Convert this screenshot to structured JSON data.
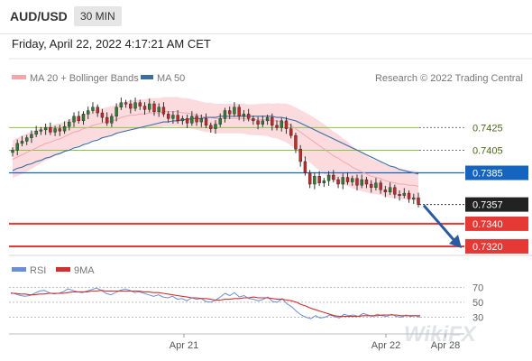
{
  "header": {
    "symbol": "AUD/USD",
    "timeframe": "30 MIN"
  },
  "datetime": "Friday, April 22, 2022 4:17:21 AM CET",
  "legend": {
    "ma20_label": "MA 20 + Bollinger Bands",
    "ma50_label": "MA 50",
    "credit": "Research © 2022 Trading Central"
  },
  "rsi_legend": {
    "rsi_label": "RSI",
    "ma9_label": "9MA"
  },
  "watermark": "WikiFX",
  "colors": {
    "up_candle": "#2e7d32",
    "down_candle": "#c62828",
    "bollinger_fill": "#fbd5d8",
    "ma20": "#f4a6ab",
    "ma50": "#3a6ea5",
    "pivot": "#1565c0",
    "support": "#e53935",
    "resistance": "#8bc34a",
    "arrow": "#2c5aa0",
    "rsi": "#6a8fd6",
    "rsi_ma": "#d32f2f"
  },
  "chart_data": [
    {
      "type": "candlestick",
      "title": "AUD/USD 30 MIN",
      "x_ticks": [
        "Apr 21",
        "Apr 22",
        "Apr 28"
      ],
      "ylim": [
        0.7312,
        0.7462
      ],
      "levels": [
        {
          "value": 0.7425,
          "label": "0.7425",
          "role": "resistance"
        },
        {
          "value": 0.7405,
          "label": "0.7405",
          "role": "resistance"
        },
        {
          "value": 0.7385,
          "label": "0.7385",
          "role": "pivot"
        },
        {
          "value": 0.7357,
          "label": "0.7357",
          "role": "last"
        },
        {
          "value": 0.734,
          "label": "0.7340",
          "role": "support"
        },
        {
          "value": 0.732,
          "label": "0.7320",
          "role": "support"
        }
      ],
      "close": [
        0.7405,
        0.7411,
        0.7413,
        0.7416,
        0.7419,
        0.7422,
        0.7423,
        0.7425,
        0.7421,
        0.7424,
        0.7422,
        0.7426,
        0.743,
        0.7435,
        0.7431,
        0.7437,
        0.744,
        0.7443,
        0.7438,
        0.7434,
        0.7429,
        0.7435,
        0.7443,
        0.7447,
        0.7446,
        0.7442,
        0.7447,
        0.7444,
        0.7441,
        0.7446,
        0.7439,
        0.7443,
        0.7437,
        0.7433,
        0.7436,
        0.7431,
        0.7433,
        0.7429,
        0.7435,
        0.743,
        0.7433,
        0.7427,
        0.7424,
        0.7428,
        0.7433,
        0.744,
        0.7437,
        0.7443,
        0.7435,
        0.7437,
        0.7433,
        0.7431,
        0.7428,
        0.7431,
        0.7434,
        0.7427,
        0.7425,
        0.7431,
        0.7424,
        0.7418,
        0.7406,
        0.7395,
        0.7385,
        0.7375,
        0.7382,
        0.7376,
        0.7378,
        0.7383,
        0.7379,
        0.7375,
        0.7381,
        0.7377,
        0.738,
        0.7374,
        0.7379,
        0.7375,
        0.7372,
        0.7376,
        0.737,
        0.7368,
        0.7372,
        0.7366,
        0.7365,
        0.7367,
        0.7362,
        0.7363,
        0.7357
      ],
      "series": [
        {
          "name": "MA 20",
          "values": [
            0.7397,
            0.7399,
            0.7401,
            0.7403,
            0.7405,
            0.7407,
            0.7409,
            0.7411,
            0.7412,
            0.7414,
            0.7415,
            0.7417,
            0.7419,
            0.7421,
            0.7422,
            0.7424,
            0.7425,
            0.7427,
            0.7428,
            0.7429,
            0.743,
            0.7431,
            0.7432,
            0.7434,
            0.7435,
            0.7436,
            0.7436,
            0.7437,
            0.7437,
            0.7438,
            0.7438,
            0.7438,
            0.7439,
            0.7439,
            0.7439,
            0.7439,
            0.7438,
            0.7438,
            0.7437,
            0.7436,
            0.7435,
            0.7434,
            0.7434,
            0.7433,
            0.7433,
            0.7433,
            0.7433,
            0.7433,
            0.7433,
            0.7433,
            0.7432,
            0.7432,
            0.7432,
            0.7432,
            0.7432,
            0.7431,
            0.7431,
            0.743,
            0.7429,
            0.7427,
            0.7424,
            0.7421,
            0.7418,
            0.7415,
            0.7412,
            0.7409,
            0.7406,
            0.7403,
            0.74,
            0.7398,
            0.7395,
            0.7393,
            0.739,
            0.7388,
            0.7386,
            0.7384,
            0.7382,
            0.7381,
            0.738,
            0.7378,
            0.7377,
            0.7376,
            0.7375,
            0.7375,
            0.7374,
            0.7374,
            0.7373
          ]
        },
        {
          "name": "MA 50",
          "values": [
            0.7387,
            0.7389,
            0.739,
            0.7392,
            0.7393,
            0.7395,
            0.7396,
            0.7398,
            0.7399,
            0.7401,
            0.7402,
            0.7404,
            0.7405,
            0.7407,
            0.7408,
            0.741,
            0.7411,
            0.7413,
            0.7414,
            0.7416,
            0.7417,
            0.7418,
            0.742,
            0.7421,
            0.7422,
            0.7423,
            0.7424,
            0.7425,
            0.7426,
            0.7427,
            0.7428,
            0.7429,
            0.743,
            0.743,
            0.7431,
            0.7431,
            0.7432,
            0.7432,
            0.7433,
            0.7433,
            0.7433,
            0.7434,
            0.7434,
            0.7434,
            0.7435,
            0.7435,
            0.7435,
            0.7435,
            0.7435,
            0.7435,
            0.7435,
            0.7435,
            0.7435,
            0.7435,
            0.7435,
            0.7435,
            0.7434,
            0.7434,
            0.7433,
            0.7432,
            0.7431,
            0.7429,
            0.7427,
            0.7425,
            0.7423,
            0.7421,
            0.7419,
            0.7417,
            0.7415,
            0.7413,
            0.7411,
            0.7409,
            0.7407,
            0.7405,
            0.7403,
            0.7401,
            0.7399,
            0.7397,
            0.7395,
            0.7393,
            0.7391,
            0.739,
            0.7388,
            0.7387,
            0.7386,
            0.7385,
            0.7384
          ]
        }
      ]
    },
    {
      "type": "line",
      "title": "RSI",
      "y_ticks": [
        70,
        50,
        30
      ],
      "ylim": [
        10,
        85
      ],
      "series": [
        {
          "name": "RSI",
          "values": [
            63,
            61,
            59,
            58,
            59,
            62,
            65,
            66,
            63,
            61,
            62,
            64,
            68,
            66,
            64,
            63,
            65,
            67,
            69,
            66,
            62,
            60,
            63,
            66,
            68,
            66,
            63,
            64,
            62,
            60,
            58,
            60,
            57,
            56,
            58,
            54,
            55,
            52,
            56,
            54,
            55,
            51,
            50,
            53,
            57,
            62,
            59,
            63,
            57,
            59,
            55,
            54,
            52,
            54,
            57,
            51,
            50,
            55,
            48,
            44,
            38,
            33,
            30,
            28,
            32,
            29,
            30,
            33,
            31,
            29,
            34,
            32,
            33,
            31,
            35,
            33,
            31,
            34,
            32,
            31,
            34,
            31,
            30,
            33,
            31,
            32,
            30
          ]
        },
        {
          "name": "9MA",
          "values": [
            62,
            62,
            61,
            61,
            60,
            60,
            61,
            61,
            62,
            62,
            62,
            62,
            63,
            64,
            64,
            64,
            64,
            65,
            65,
            66,
            65,
            65,
            65,
            65,
            65,
            65,
            65,
            65,
            64,
            64,
            63,
            63,
            62,
            61,
            60,
            59,
            58,
            57,
            56,
            56,
            55,
            55,
            54,
            53,
            53,
            54,
            54,
            55,
            55,
            56,
            56,
            57,
            56,
            56,
            56,
            55,
            54,
            54,
            53,
            52,
            50,
            47,
            45,
            42,
            40,
            38,
            36,
            34,
            32,
            31,
            31,
            31,
            31,
            31,
            32,
            32,
            32,
            32,
            33,
            33,
            33,
            33,
            32,
            32,
            32,
            32,
            32
          ]
        }
      ]
    }
  ]
}
